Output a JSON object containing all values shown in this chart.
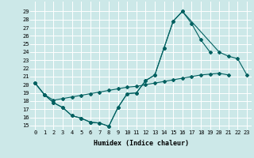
{
  "xlabel": "Humidex (Indice chaleur)",
  "xlim": [
    -0.5,
    23.5
  ],
  "ylim": [
    14.5,
    30.2
  ],
  "yticks": [
    15,
    16,
    17,
    18,
    19,
    20,
    21,
    22,
    23,
    24,
    25,
    26,
    27,
    28,
    29
  ],
  "xticks": [
    0,
    1,
    2,
    3,
    4,
    5,
    6,
    7,
    8,
    9,
    10,
    11,
    12,
    13,
    14,
    15,
    16,
    17,
    18,
    19,
    20,
    21,
    22,
    23
  ],
  "bg_color": "#cce8e8",
  "line_color": "#006060",
  "grid_color": "#ffffff",
  "curve1_x": [
    0,
    1,
    2,
    3,
    4,
    5,
    6,
    7,
    8,
    9,
    10,
    11,
    12,
    13,
    14,
    15,
    16,
    17,
    18,
    19
  ],
  "curve1_y": [
    20.2,
    18.8,
    17.8,
    17.2,
    16.2,
    15.9,
    15.4,
    15.3,
    14.9,
    17.2,
    18.9,
    19.0,
    20.5,
    21.2,
    24.5,
    27.8,
    29.0,
    27.5,
    25.5,
    24.0
  ],
  "curve2_x": [
    0,
    1,
    2,
    3,
    4,
    5,
    6,
    7,
    8,
    9,
    10,
    11,
    12,
    13,
    14,
    15,
    16,
    20,
    21,
    22,
    23
  ],
  "curve2_y": [
    20.2,
    18.8,
    17.8,
    17.2,
    16.2,
    15.9,
    15.4,
    15.3,
    14.9,
    17.2,
    18.9,
    19.0,
    20.5,
    21.2,
    24.5,
    27.8,
    29.0,
    24.0,
    23.5,
    23.2,
    21.2
  ],
  "curve3_x": [
    0,
    1,
    2,
    3,
    4,
    5,
    6,
    7,
    8,
    9,
    10,
    11,
    12,
    13,
    14,
    15,
    16,
    17,
    18,
    19,
    20,
    21
  ],
  "curve3_y": [
    20.2,
    18.8,
    18.1,
    18.3,
    18.5,
    18.7,
    18.9,
    19.1,
    19.3,
    19.5,
    19.7,
    19.8,
    20.0,
    20.2,
    20.4,
    20.6,
    20.8,
    21.0,
    21.2,
    21.3,
    21.4,
    21.2
  ]
}
